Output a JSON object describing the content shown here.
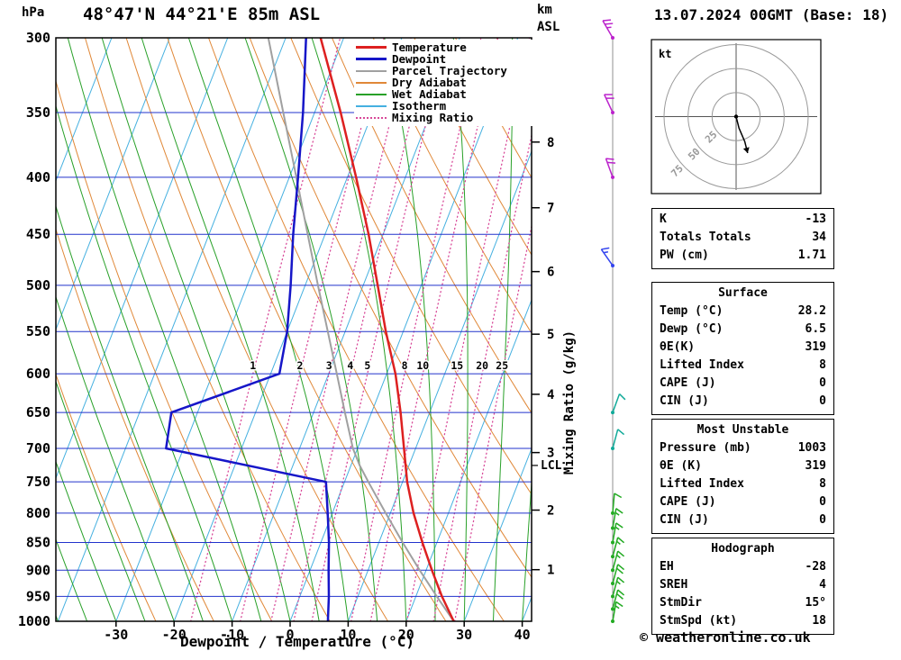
{
  "header": {
    "pressure_unit": "hPa",
    "location": "48°47'N 44°21'E 85m ASL",
    "datetime": "13.07.2024 00GMT (Base: 18)",
    "km_line1": "km",
    "km_line2": "ASL"
  },
  "axes": {
    "xlabel": "Dewpoint / Temperature (°C)",
    "right_label": "Mixing Ratio (g/kg)",
    "lcl_label": "LCL"
  },
  "legend": [
    {
      "label": "Temperature",
      "color": "#dd2020",
      "style": "solid",
      "width": 3
    },
    {
      "label": "Dewpoint",
      "color": "#1616c8",
      "style": "solid",
      "width": 3
    },
    {
      "label": "Parcel Trajectory",
      "color": "#a0a0a0",
      "style": "solid",
      "width": 2
    },
    {
      "label": "Dry Adiabat",
      "color": "#e08838",
      "style": "solid",
      "width": 2
    },
    {
      "label": "Wet Adiabat",
      "color": "#28a028",
      "style": "solid",
      "width": 2
    },
    {
      "label": "Isotherm",
      "color": "#45b0e0",
      "style": "solid",
      "width": 2
    },
    {
      "label": "Mixing Ratio",
      "color": "#d84898",
      "style": "dotted",
      "width": 2
    }
  ],
  "chart_data": {
    "type": "skewt-log-p",
    "pressure_ticks": [
      300,
      350,
      400,
      450,
      500,
      550,
      600,
      650,
      700,
      750,
      800,
      850,
      900,
      950,
      1000
    ],
    "temp_ticks": [
      -30,
      -20,
      -10,
      0,
      10,
      20,
      30,
      40
    ],
    "skew": 0.39,
    "isotherm_step": 10,
    "mixing_ratios": [
      1,
      2,
      3,
      4,
      5,
      8,
      10,
      15,
      20,
      25
    ],
    "mixing_label_pressure": 600,
    "km_ticks": [
      {
        "km": 1,
        "p": 899
      },
      {
        "km": 2,
        "p": 795
      },
      {
        "km": 3,
        "p": 706
      },
      {
        "km": 4,
        "p": 626
      },
      {
        "km": 5,
        "p": 553
      },
      {
        "km": 6,
        "p": 486
      },
      {
        "km": 7,
        "p": 426
      },
      {
        "km": 8,
        "p": 372
      }
    ],
    "lcl_pressure": 725,
    "temperature_profile": [
      {
        "p": 1000,
        "t": 28.2
      },
      {
        "p": 950,
        "t": 24.5
      },
      {
        "p": 900,
        "t": 21.0
      },
      {
        "p": 850,
        "t": 17.5
      },
      {
        "p": 800,
        "t": 14.0
      },
      {
        "p": 750,
        "t": 10.8
      },
      {
        "p": 700,
        "t": 8.0
      },
      {
        "p": 650,
        "t": 5.0
      },
      {
        "p": 600,
        "t": 1.5
      },
      {
        "p": 550,
        "t": -3.0
      },
      {
        "p": 500,
        "t": -7.5
      },
      {
        "p": 450,
        "t": -12.5
      },
      {
        "p": 400,
        "t": -18.5
      },
      {
        "p": 350,
        "t": -25.5
      },
      {
        "p": 300,
        "t": -34.0
      }
    ],
    "dewpoint_profile": [
      {
        "p": 1000,
        "t": 6.5
      },
      {
        "p": 950,
        "t": 5.0
      },
      {
        "p": 900,
        "t": 3.2
      },
      {
        "p": 850,
        "t": 1.4
      },
      {
        "p": 800,
        "t": -0.8
      },
      {
        "p": 750,
        "t": -3.2
      },
      {
        "p": 700,
        "t": -33.0
      },
      {
        "p": 650,
        "t": -34.5
      },
      {
        "p": 600,
        "t": -18.5
      },
      {
        "p": 550,
        "t": -20.0
      },
      {
        "p": 500,
        "t": -22.5
      },
      {
        "p": 450,
        "t": -25.5
      },
      {
        "p": 400,
        "t": -28.5
      },
      {
        "p": 350,
        "t": -32.0
      },
      {
        "p": 300,
        "t": -36.5
      }
    ],
    "parcel_profile": [
      {
        "p": 1000,
        "t": 28.2
      },
      {
        "p": 950,
        "t": 23.6
      },
      {
        "p": 900,
        "t": 18.9
      },
      {
        "p": 850,
        "t": 14.1
      },
      {
        "p": 800,
        "t": 9.2
      },
      {
        "p": 750,
        "t": 4.1
      },
      {
        "p": 725,
        "t": 1.5
      },
      {
        "p": 700,
        "t": -0.8
      },
      {
        "p": 650,
        "t": -4.6
      },
      {
        "p": 600,
        "t": -8.6
      },
      {
        "p": 550,
        "t": -13.0
      },
      {
        "p": 500,
        "t": -17.8
      },
      {
        "p": 450,
        "t": -23.0
      },
      {
        "p": 400,
        "t": -28.8
      },
      {
        "p": 350,
        "t": -35.4
      },
      {
        "p": 300,
        "t": -43.0
      }
    ],
    "colors": {
      "isobar": "#2233cc",
      "isotherm": "#45b0e0",
      "dry_adiabat": "#e08838",
      "wet_adiabat": "#28a028",
      "mixing_ratio": "#d84898",
      "mixing_label": "#cc2288",
      "temperature": "#dd2020",
      "dewpoint": "#1616c8",
      "parcel": "#a0a0a0",
      "frame": "#000000"
    }
  },
  "wind_barbs": {
    "barbs": [
      {
        "p": 300,
        "spd": 25,
        "dir": 330,
        "color": "#bb22cc"
      },
      {
        "p": 350,
        "spd": 20,
        "dir": 335,
        "color": "#bb22cc"
      },
      {
        "p": 400,
        "spd": 20,
        "dir": 340,
        "color": "#bb22cc"
      },
      {
        "p": 480,
        "spd": 15,
        "dir": 325,
        "color": "#3344ee"
      },
      {
        "p": 650,
        "spd": 10,
        "dir": 20,
        "color": "#11aa99"
      },
      {
        "p": 700,
        "spd": 10,
        "dir": 15,
        "color": "#11aa99"
      },
      {
        "p": 800,
        "spd": 10,
        "dir": 5,
        "color": "#22aa22"
      },
      {
        "p": 825,
        "spd": 15,
        "dir": 10,
        "color": "#22aa22"
      },
      {
        "p": 850,
        "spd": 15,
        "dir": 10,
        "color": "#22aa22"
      },
      {
        "p": 875,
        "spd": 15,
        "dir": 15,
        "color": "#22aa22"
      },
      {
        "p": 900,
        "spd": 15,
        "dir": 15,
        "color": "#22aa22"
      },
      {
        "p": 925,
        "spd": 20,
        "dir": 15,
        "color": "#22aa22"
      },
      {
        "p": 950,
        "spd": 15,
        "dir": 15,
        "color": "#22aa22"
      },
      {
        "p": 975,
        "spd": 20,
        "dir": 15,
        "color": "#22aa22"
      },
      {
        "p": 1000,
        "spd": 15,
        "dir": 10,
        "color": "#22aa22"
      }
    ]
  },
  "hodograph": {
    "unit_label": "kt",
    "rings": [
      25,
      50,
      75
    ],
    "trace_kt": [
      [
        0,
        0
      ],
      [
        3,
        12
      ],
      [
        9,
        26
      ],
      [
        12,
        38
      ]
    ]
  },
  "tables": [
    {
      "rows": [
        [
          "K",
          "-13"
        ],
        [
          "Totals Totals",
          "34"
        ],
        [
          "PW (cm)",
          "1.71"
        ]
      ]
    },
    {
      "header": "Surface",
      "rows": [
        [
          "Temp (°C)",
          "28.2"
        ],
        [
          "Dewp (°C)",
          "6.5"
        ],
        [
          "θE(K)",
          "319"
        ],
        [
          "Lifted Index",
          "8"
        ],
        [
          "CAPE (J)",
          "0"
        ],
        [
          "CIN (J)",
          "0"
        ]
      ]
    },
    {
      "header": "Most Unstable",
      "rows": [
        [
          "Pressure (mb)",
          "1003"
        ],
        [
          "θE (K)",
          "319"
        ],
        [
          "Lifted Index",
          "8"
        ],
        [
          "CAPE (J)",
          "0"
        ],
        [
          "CIN (J)",
          "0"
        ]
      ]
    },
    {
      "header": "Hodograph",
      "rows": [
        [
          "EH",
          "-28"
        ],
        [
          "SREH",
          "4"
        ],
        [
          "StmDir",
          "15°"
        ],
        [
          "StmSpd (kt)",
          "18"
        ]
      ]
    }
  ],
  "footer": {
    "copyright": "© weatheronline.co.uk"
  }
}
